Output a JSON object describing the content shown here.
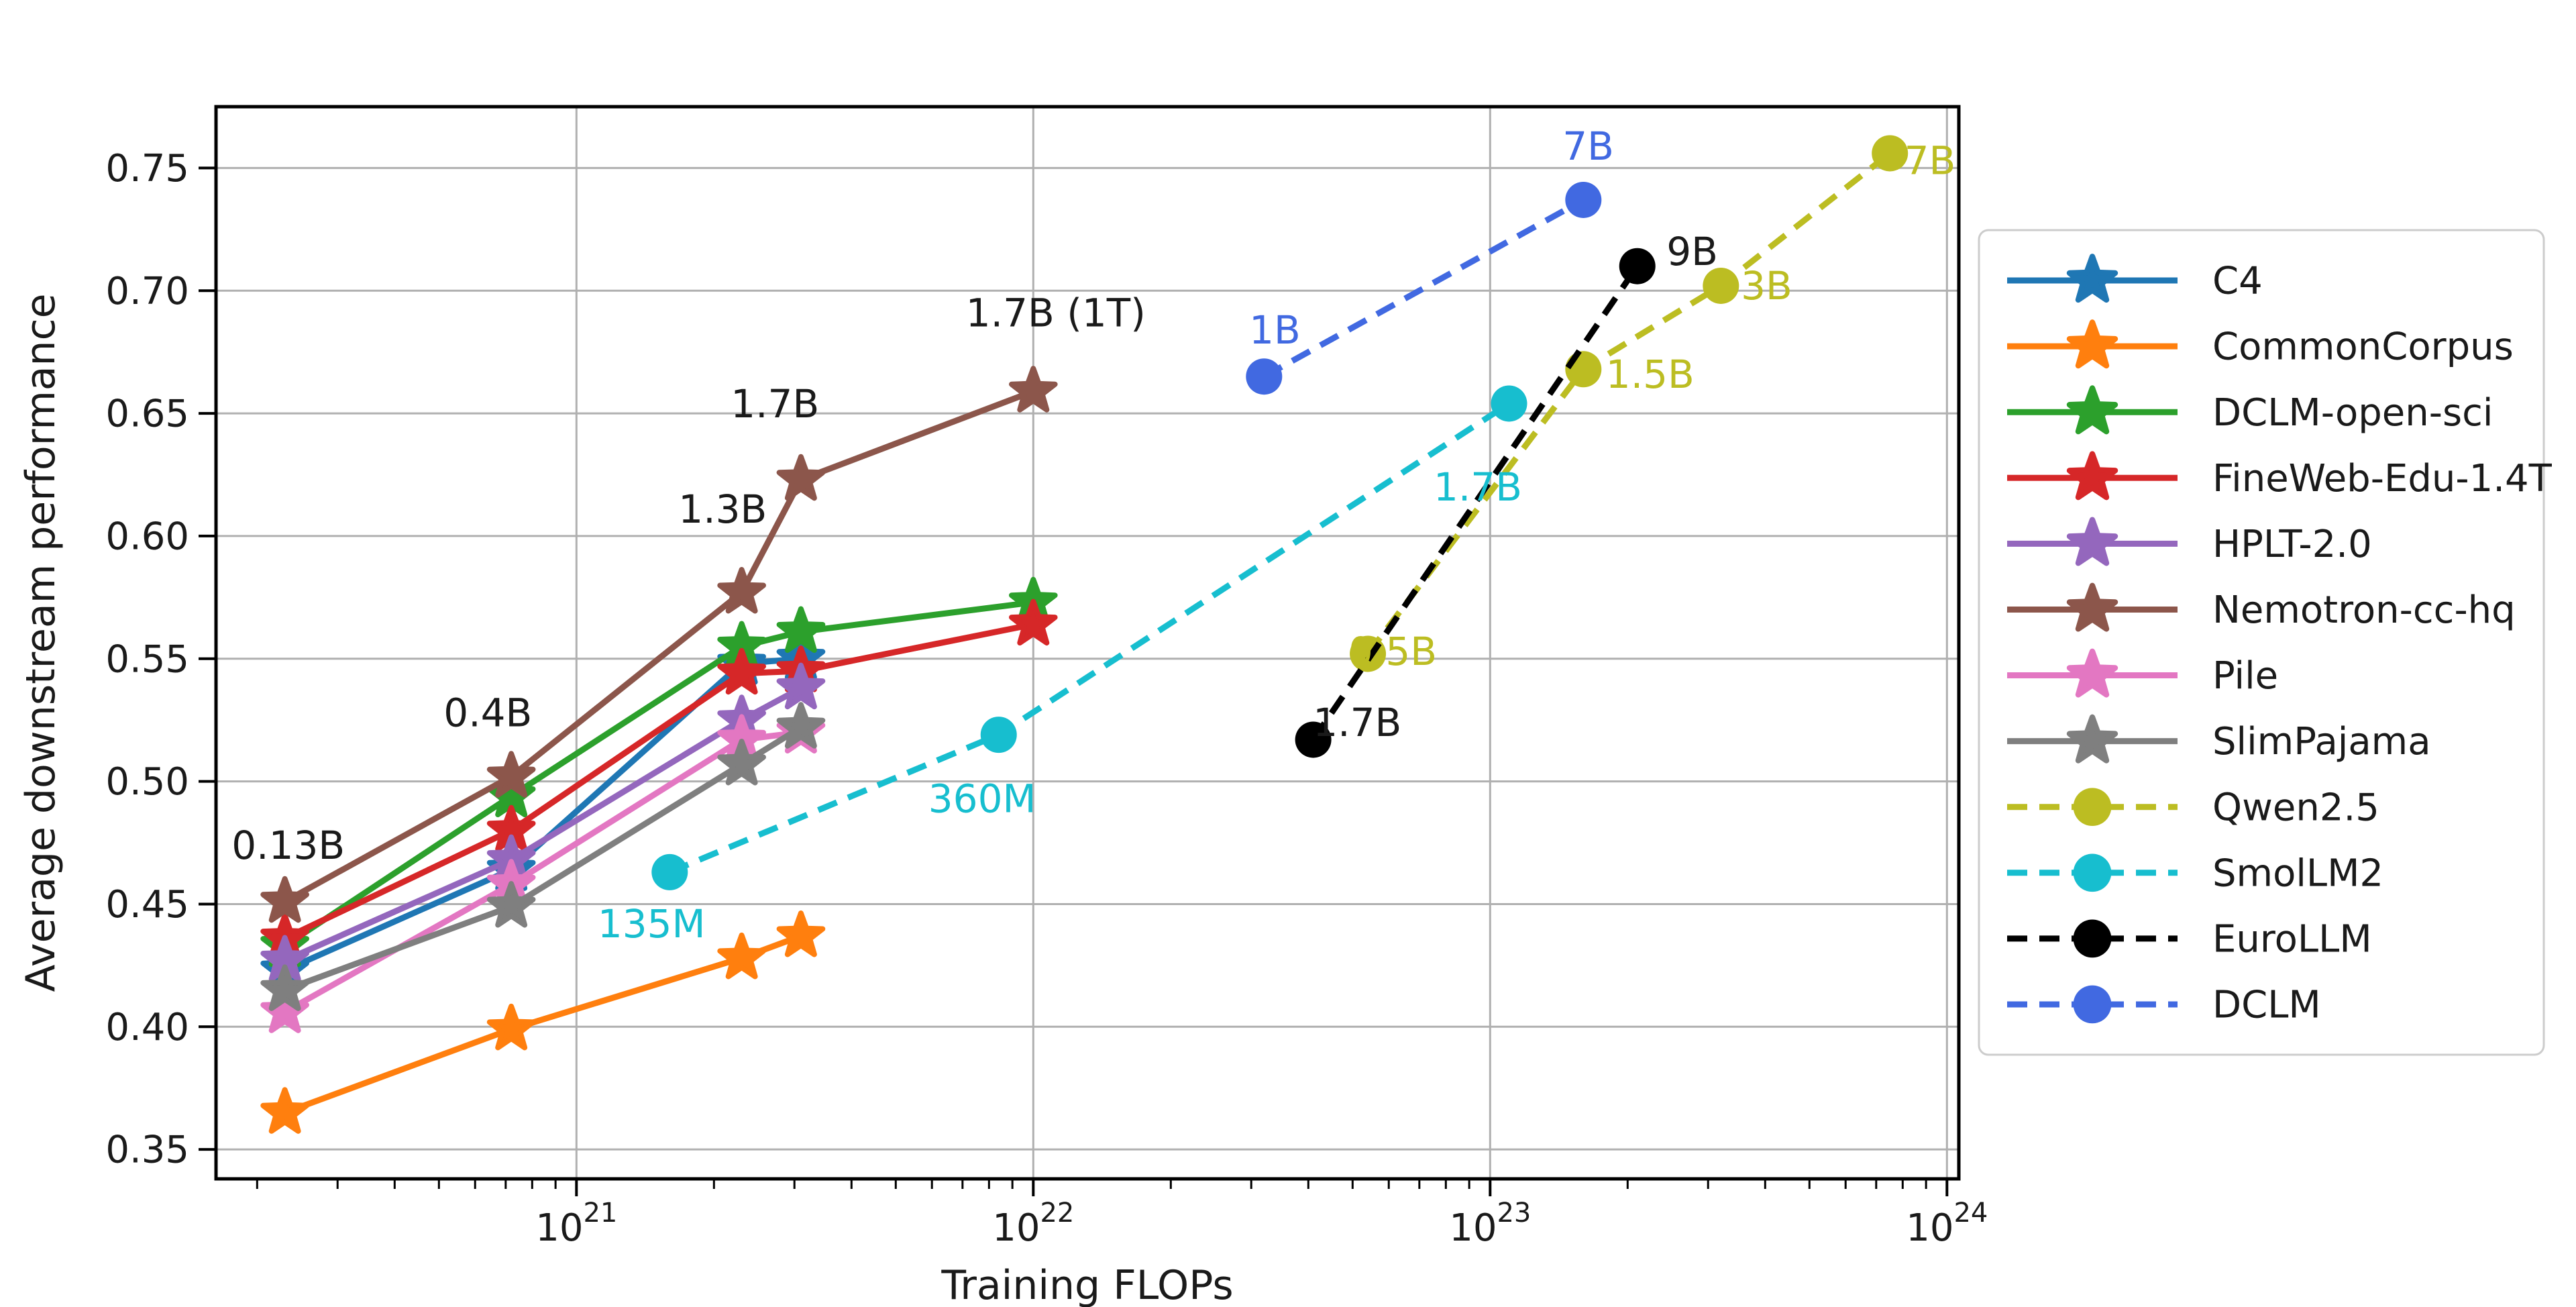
{
  "chart_data": {
    "type": "line",
    "title": "",
    "xlabel": "Training FLOPs",
    "ylabel": "Average downstream performance",
    "x_scale": "log",
    "x_tick_exponents": [
      21,
      22,
      23,
      24
    ],
    "x_tick_base": "10",
    "xlim_log10": [
      20.211,
      24.026
    ],
    "ylim": [
      0.338,
      0.775
    ],
    "y_ticks": [
      0.35,
      0.4,
      0.45,
      0.5,
      0.55,
      0.6,
      0.65,
      0.7,
      0.75
    ],
    "grid": true,
    "legend_position": "right-outside",
    "colors": {
      "grid": "#b0b0b0",
      "spine": "#000000",
      "text": "#1a1a1a",
      "legend_border": "#cccccc",
      "legend_bg": "#ffffff"
    },
    "series": [
      {
        "name": "C4",
        "color": "#1f77b4",
        "marker": "star",
        "dashed": false,
        "points": [
          [
            2.3e+20,
            0.423
          ],
          [
            7.2e+20,
            0.464
          ],
          [
            2.3e+21,
            0.548
          ],
          [
            3.1e+21,
            0.55
          ]
        ]
      },
      {
        "name": "CommonCorpus",
        "color": "#ff7f0e",
        "marker": "star",
        "dashed": false,
        "points": [
          [
            2.3e+20,
            0.365
          ],
          [
            7.2e+20,
            0.399
          ],
          [
            2.3e+21,
            0.428
          ],
          [
            3.1e+21,
            0.437
          ]
        ]
      },
      {
        "name": "DCLM-open-sci",
        "color": "#2ca02c",
        "marker": "star",
        "dashed": false,
        "points": [
          [
            2.3e+20,
            0.433
          ],
          [
            7.2e+20,
            0.494
          ],
          [
            2.3e+21,
            0.555
          ],
          [
            3.1e+21,
            0.561
          ],
          [
            1e+22,
            0.573
          ]
        ]
      },
      {
        "name": "FineWeb-Edu-1.4T",
        "color": "#d62728",
        "marker": "star",
        "dashed": false,
        "points": [
          [
            2.3e+20,
            0.436
          ],
          [
            7.2e+20,
            0.48
          ],
          [
            2.3e+21,
            0.544
          ],
          [
            3.1e+21,
            0.545
          ],
          [
            1e+22,
            0.564
          ]
        ]
      },
      {
        "name": "HPLT-2.0",
        "color": "#9467bd",
        "marker": "star",
        "dashed": false,
        "points": [
          [
            2.3e+20,
            0.427
          ],
          [
            7.2e+20,
            0.468
          ],
          [
            2.3e+21,
            0.525
          ],
          [
            3.1e+21,
            0.538
          ]
        ]
      },
      {
        "name": "Nemotron-cc-hq",
        "color": "#8c564b",
        "marker": "star",
        "dashed": false,
        "points": [
          [
            2.3e+20,
            0.451
          ],
          [
            7.2e+20,
            0.502
          ],
          [
            2.3e+21,
            0.577
          ],
          [
            3.1e+21,
            0.623
          ],
          [
            1e+22,
            0.659
          ]
        ]
      },
      {
        "name": "Pile",
        "color": "#e377c2",
        "marker": "star",
        "dashed": false,
        "points": [
          [
            2.3e+20,
            0.406
          ],
          [
            7.2e+20,
            0.458
          ],
          [
            2.3e+21,
            0.517
          ],
          [
            3.1e+21,
            0.52
          ]
        ]
      },
      {
        "name": "SlimPajama",
        "color": "#7f7f7f",
        "marker": "star",
        "dashed": false,
        "points": [
          [
            2.3e+20,
            0.415
          ],
          [
            7.2e+20,
            0.449
          ],
          [
            2.3e+21,
            0.507
          ],
          [
            3.1e+21,
            0.522
          ]
        ]
      },
      {
        "name": "Qwen2.5",
        "color": "#bcbd22",
        "marker": "circle",
        "dashed": true,
        "points": [
          [
            5.4e+22,
            0.552
          ],
          [
            1.6e+23,
            0.668
          ],
          [
            3.2e+23,
            0.702
          ],
          [
            7.5e+23,
            0.756
          ]
        ]
      },
      {
        "name": "SmolLM2",
        "color": "#17becf",
        "marker": "circle",
        "dashed": true,
        "points": [
          [
            1.6e+21,
            0.463
          ],
          [
            8.4e+21,
            0.519
          ],
          [
            1.1e+23,
            0.654
          ]
        ]
      },
      {
        "name": "EuroLLM",
        "color": "#000000",
        "marker": "circle",
        "dashed": true,
        "points": [
          [
            4.1e+22,
            0.517
          ],
          [
            2.1e+23,
            0.71
          ]
        ]
      },
      {
        "name": "DCLM",
        "color": "#4169e1",
        "marker": "circle",
        "dashed": true,
        "points": [
          [
            3.2e+22,
            0.665
          ],
          [
            1.6e+23,
            0.737
          ]
        ]
      }
    ],
    "annotations": [
      {
        "text": "0.13B",
        "x": 2.34e+20,
        "y": 0.474,
        "color": "#1a1a1a"
      },
      {
        "text": "0.4B",
        "x": 6.4e+20,
        "y": 0.528,
        "color": "#1a1a1a"
      },
      {
        "text": "1.3B",
        "x": 2.09e+21,
        "y": 0.611,
        "color": "#1a1a1a"
      },
      {
        "text": "1.7B",
        "x": 2.72e+21,
        "y": 0.654,
        "color": "#1a1a1a"
      },
      {
        "text": "1.7B (1T)",
        "x": 1.12e+22,
        "y": 0.691,
        "color": "#1a1a1a"
      },
      {
        "text": "9B",
        "x": 2.77e+23,
        "y": 0.716,
        "color": "#1a1a1a"
      },
      {
        "text": "1.7B",
        "x": 5.12e+22,
        "y": 0.524,
        "color": "#1a1a1a"
      },
      {
        "text": "1B",
        "x": 3.38e+22,
        "y": 0.684,
        "color": "#4169e1"
      },
      {
        "text": "7B",
        "x": 1.64e+23,
        "y": 0.759,
        "color": "#4169e1"
      },
      {
        "text": "0.5B",
        "x": 6.12e+22,
        "y": 0.553,
        "color": "#bcbd22"
      },
      {
        "text": "1.5B",
        "x": 2.24e+23,
        "y": 0.666,
        "color": "#bcbd22"
      },
      {
        "text": "3B",
        "x": 4.03e+23,
        "y": 0.702,
        "color": "#bcbd22"
      },
      {
        "text": "7B",
        "x": 9.18e+23,
        "y": 0.753,
        "color": "#bcbd22"
      },
      {
        "text": "135M",
        "x": 1.46e+21,
        "y": 0.442,
        "color": "#17becf"
      },
      {
        "text": "360M",
        "x": 7.73e+21,
        "y": 0.493,
        "color": "#17becf"
      },
      {
        "text": "1.7B",
        "x": 9.4e+22,
        "y": 0.62,
        "color": "#17becf"
      }
    ]
  }
}
